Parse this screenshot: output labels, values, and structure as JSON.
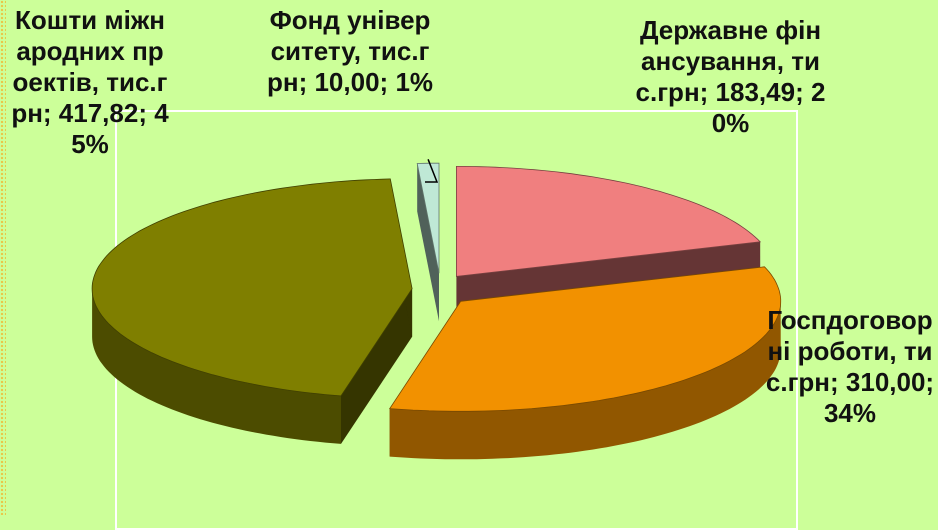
{
  "chart_data": {
    "type": "pie",
    "categories": [
      "Державне фінансування, тис.грн;",
      "Госпдоговорні роботи, тис.грн;",
      "Кошти міжнародних проектів, тис.грн;",
      "Фонд університету, тис.грн;"
    ],
    "values": [
      183.49,
      310.0,
      417.82,
      10.0
    ],
    "value_labels": [
      "183,49;",
      "310,00;",
      "417,82;",
      "10,00;"
    ],
    "percents": [
      20,
      34,
      45,
      1
    ],
    "percent_labels": [
      "20%",
      "34%",
      "45%",
      "1%"
    ],
    "colors": [
      "#f07f7f",
      "#f29100",
      "#7f7f00",
      "#bfe8d6"
    ]
  }
}
